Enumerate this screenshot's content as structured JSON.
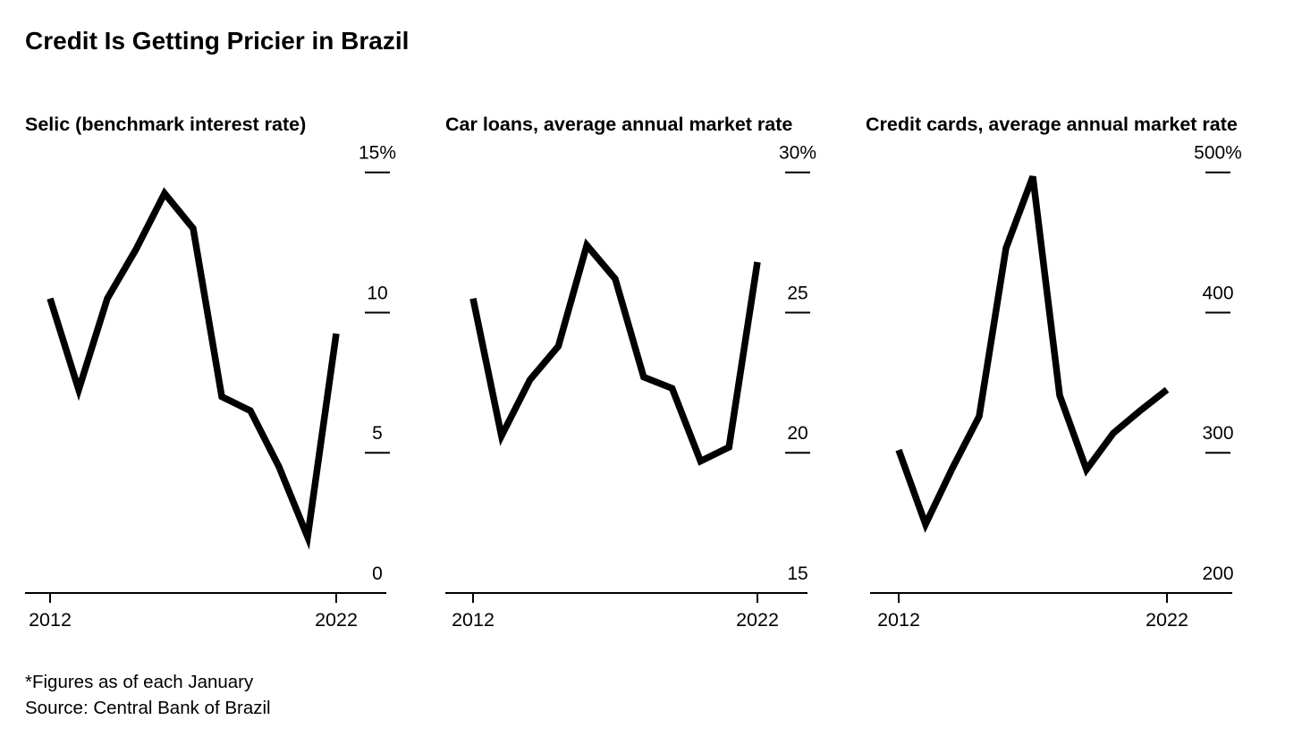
{
  "title": "Credit Is Getting Pricier in Brazil",
  "footnote": "*Figures as of each January",
  "source": "Source: Central Bank of Brazil",
  "colors": {
    "line": "#000000",
    "axis": "#000000",
    "text": "#000000",
    "background": "#ffffff"
  },
  "chart_data": [
    {
      "type": "line",
      "title": "Selic (benchmark interest rate)",
      "x": [
        2012,
        2013,
        2014,
        2015,
        2016,
        2017,
        2018,
        2019,
        2020,
        2021,
        2022
      ],
      "values": [
        10.5,
        7.25,
        10.5,
        12.25,
        14.25,
        13.0,
        7.0,
        6.5,
        4.5,
        2.0,
        9.25
      ],
      "ylim": [
        0,
        15
      ],
      "ytick_values": [
        15,
        10,
        5,
        0
      ],
      "ytick_labels": [
        "15%",
        "10",
        "5",
        "0"
      ],
      "xtick_values": [
        2012,
        2022
      ],
      "xtick_labels": [
        "2012",
        "2022"
      ],
      "grid": false,
      "legend": "none"
    },
    {
      "type": "line",
      "title": "Car loans, average annual market rate",
      "x": [
        2012,
        2013,
        2014,
        2015,
        2016,
        2017,
        2018,
        2019,
        2020,
        2021,
        2022
      ],
      "values": [
        25.5,
        20.6,
        22.6,
        23.8,
        27.4,
        26.2,
        22.7,
        22.3,
        19.7,
        20.2,
        26.8
      ],
      "ylim": [
        15,
        30
      ],
      "ytick_values": [
        30,
        25,
        20,
        15
      ],
      "ytick_labels": [
        "30%",
        "25",
        "20",
        "15"
      ],
      "xtick_values": [
        2012,
        2022
      ],
      "xtick_labels": [
        "2012",
        "2022"
      ],
      "grid": false,
      "legend": "none"
    },
    {
      "type": "line",
      "title": "Credit cards, average annual market rate",
      "x": [
        2012,
        2013,
        2014,
        2015,
        2016,
        2017,
        2018,
        2019,
        2020,
        2021,
        2022
      ],
      "values": [
        302,
        249,
        289,
        326,
        446,
        497,
        341,
        288,
        314,
        330,
        345
      ],
      "ylim": [
        200,
        500
      ],
      "ytick_values": [
        500,
        400,
        300,
        200
      ],
      "ytick_labels": [
        "500%",
        "400",
        "300",
        "200"
      ],
      "xtick_values": [
        2012,
        2022
      ],
      "xtick_labels": [
        "2012",
        "2022"
      ],
      "grid": false,
      "legend": "none"
    }
  ]
}
